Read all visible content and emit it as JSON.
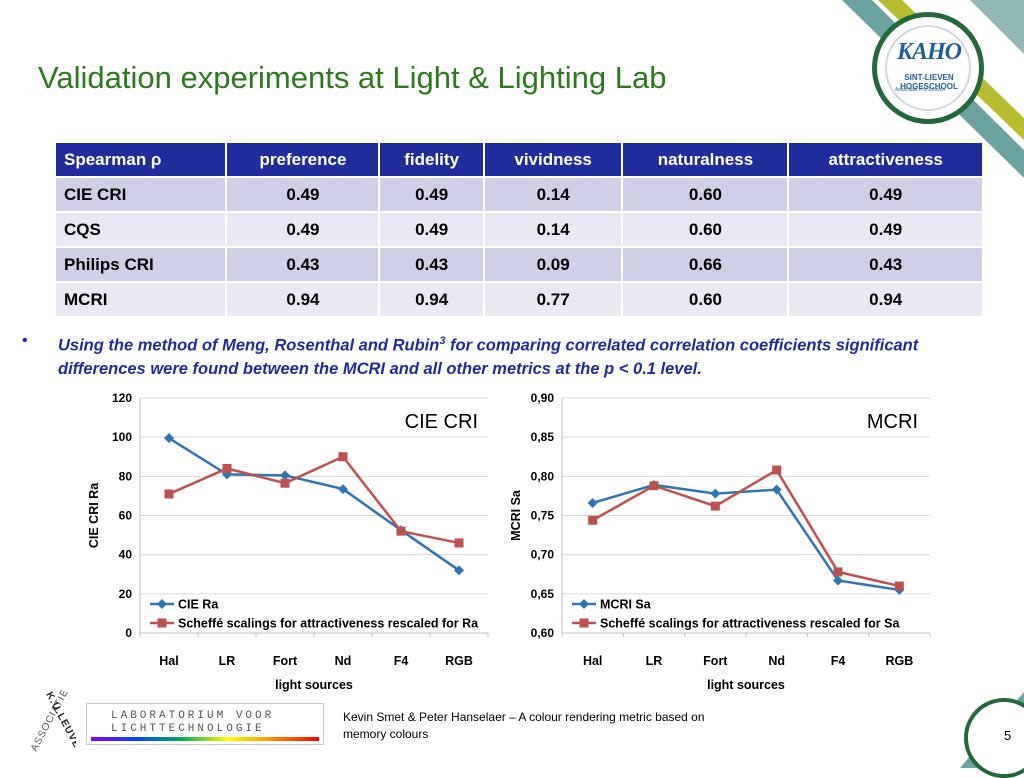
{
  "title": "Validation experiments at Light & Lighting Lab",
  "logo": {
    "mark": "KAHO",
    "name": "SINT-LIEVEN HOGESCHOOL",
    "sub": "Associatie K.U.Leuven"
  },
  "table": {
    "headers": [
      "Spearman ρ",
      "preference",
      "fidelity",
      "vividness",
      "naturalness",
      "attractiveness"
    ],
    "rows": [
      [
        "CIE CRI",
        "0.49",
        "0.49",
        "0.14",
        "0.60",
        "0.49"
      ],
      [
        "CQS",
        "0.49",
        "0.49",
        "0.14",
        "0.60",
        "0.49"
      ],
      [
        "Philips CRI",
        "0.43",
        "0.43",
        "0.09",
        "0.66",
        "0.43"
      ],
      [
        "MCRI",
        "0.94",
        "0.94",
        "0.77",
        "0.60",
        "0.94"
      ]
    ]
  },
  "bullet": {
    "before": "Using the method of Meng, Rosenthal and Rubin",
    "sup": "3",
    "after": " for comparing correlated correlation coefficients significant differences were found between the MCRI and all other metrics at the p < 0.1 level."
  },
  "chart_data": [
    {
      "type": "line",
      "title": "CIE CRI",
      "xlabel": "light sources",
      "ylabel": "CIE CRI Ra",
      "categories": [
        "Hal",
        "LR",
        "Fort",
        "Nd",
        "F4",
        "RGB"
      ],
      "ylim": [
        0,
        120
      ],
      "yticks": [
        "0",
        "20",
        "40",
        "60",
        "80",
        "100",
        "120"
      ],
      "ytick_values": [
        0,
        20,
        40,
        60,
        80,
        100,
        120
      ],
      "grid": true,
      "legend_position": "bottom-left",
      "series": [
        {
          "name": "CIE Ra",
          "color": "#2e75b6",
          "marker": "diamond",
          "values": [
            99.5,
            81,
            80.5,
            73.5,
            52.5,
            32
          ]
        },
        {
          "name": "Scheffé scalings for attractiveness rescaled for Ra",
          "color": "#c0504d",
          "marker": "square",
          "values": [
            71,
            84,
            76.5,
            90,
            52,
            46
          ]
        }
      ]
    },
    {
      "type": "line",
      "title": "MCRI",
      "xlabel": "light sources",
      "ylabel": "MCRI Sa",
      "categories": [
        "Hal",
        "LR",
        "Fort",
        "Nd",
        "F4",
        "RGB"
      ],
      "ylim": [
        0.6,
        0.9
      ],
      "yticks": [
        "0,60",
        "0,65",
        "0,70",
        "0,75",
        "0,80",
        "0,85",
        "0,90"
      ],
      "ytick_values": [
        0.6,
        0.65,
        0.7,
        0.75,
        0.8,
        0.85,
        0.9
      ],
      "grid": true,
      "legend_position": "bottom-left",
      "series": [
        {
          "name": "MCRI Sa",
          "color": "#2e75b6",
          "marker": "diamond",
          "values": [
            0.766,
            0.789,
            0.778,
            0.783,
            0.667,
            0.655
          ]
        },
        {
          "name": "Scheffé scalings for attractiveness rescaled for Sa",
          "color": "#c0504d",
          "marker": "square",
          "values": [
            0.744,
            0.788,
            0.762,
            0.808,
            0.678,
            0.66
          ]
        }
      ]
    }
  ],
  "footer": {
    "lab_line1": "LABORATORIUM VOOR",
    "lab_line2": "LICHTTECHNOLOGIE",
    "assoc_word1": "ASSOCIATIE",
    "assoc_word2": "K.U.LEUVEN",
    "credit": "Kevin Smet & Peter Hanselaer – A colour rendering metric based on memory colours",
    "page": "5"
  },
  "colors": {
    "title_green": "#2c7a1c",
    "table_header": "#1f2d9c",
    "bullet_blue": "#1f2d9c",
    "teal": "#5e9c9a",
    "olive": "#b5b82a"
  }
}
